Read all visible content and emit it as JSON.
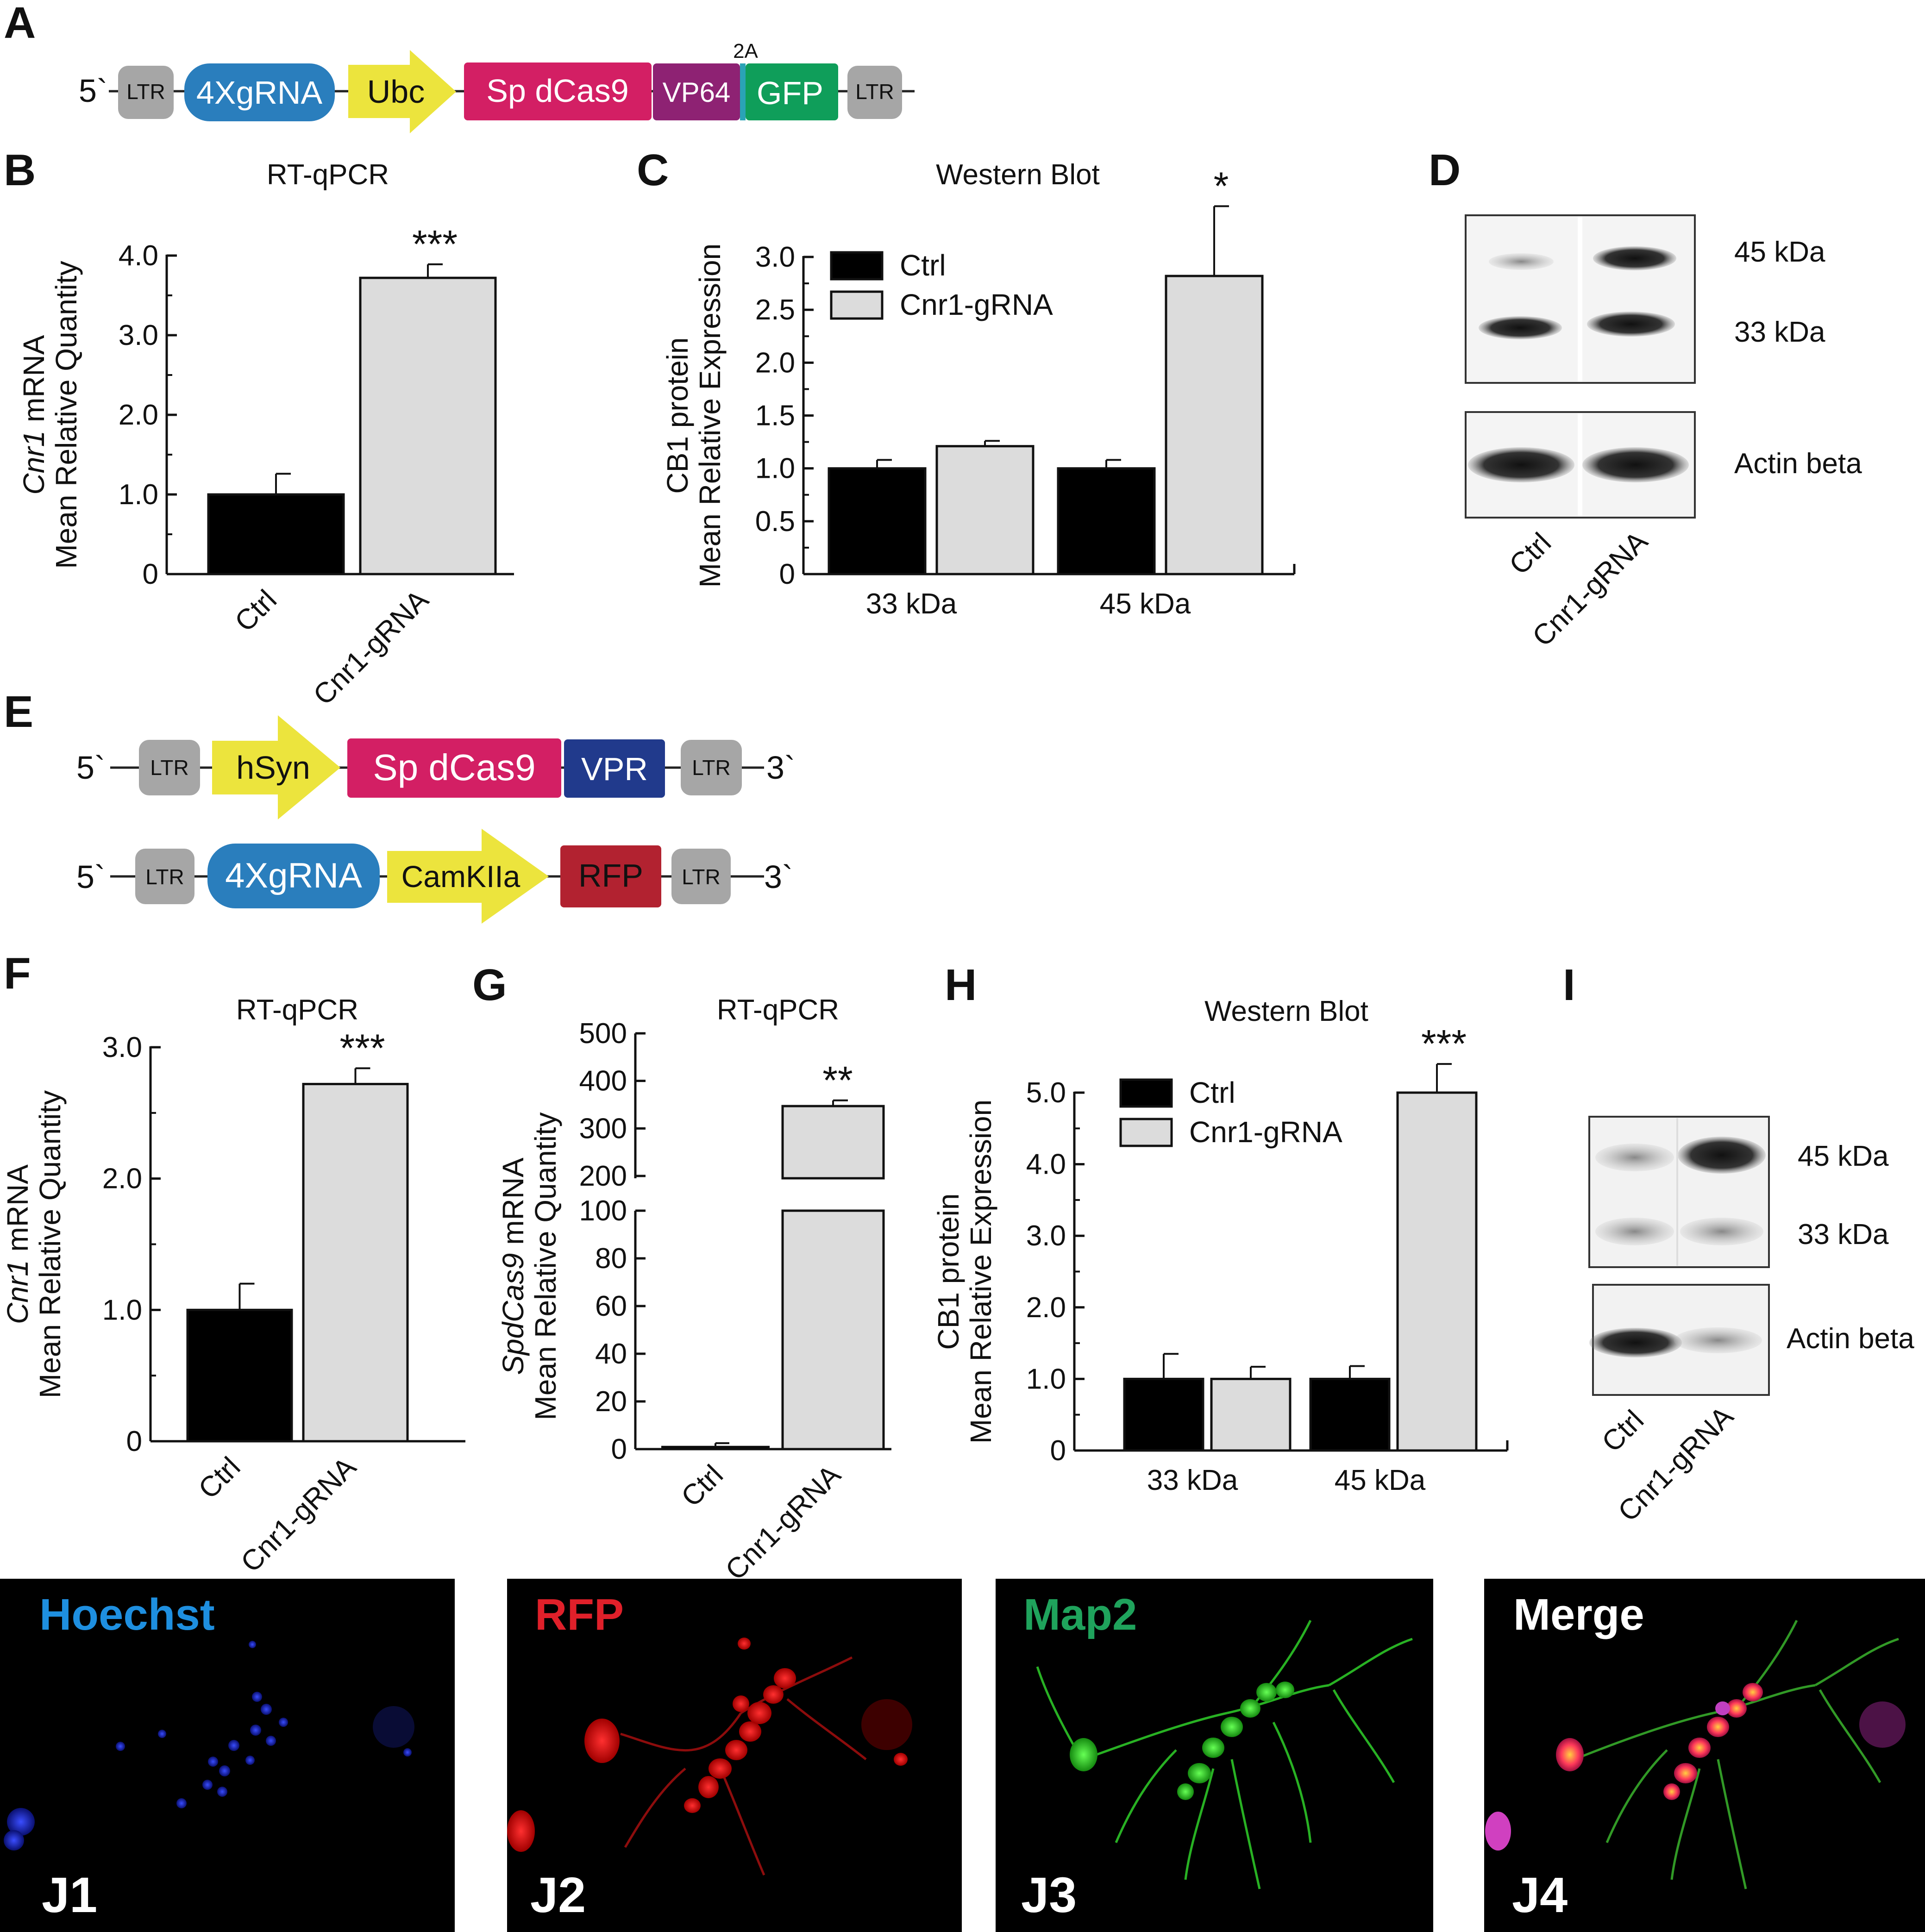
{
  "panels": {
    "A": "A",
    "B": "B",
    "C": "C",
    "D": "D",
    "E": "E",
    "F": "F",
    "G": "G",
    "H": "H",
    "I": "I"
  },
  "construct_A": {
    "five_prime": "5`",
    "blocks": [
      "LTR",
      "4XgRNA",
      "Ubc",
      "Sp dCas9",
      "VP64",
      "2A",
      "GFP",
      "LTR"
    ],
    "colors": {
      "ltr": "#a6a6a6",
      "grna": "#2a7ebd",
      "promoter": "#ece43d",
      "dcas9": "#d31f64",
      "vp64": "#8e2273",
      "gfp": "#0f9e5a",
      "a2": "#2aa3b6"
    }
  },
  "construct_E": {
    "line1": {
      "five_prime": "5`",
      "three_prime": "3`",
      "blocks": [
        "LTR",
        "hSyn",
        "Sp dCas9",
        "VPR",
        "LTR"
      ]
    },
    "line2": {
      "five_prime": "5`",
      "three_prime": "3`",
      "blocks": [
        "LTR",
        "4XgRNA",
        "CamKIIa",
        "RFP",
        "LTR"
      ]
    },
    "colors": {
      "vpr": "#213a8c",
      "rfp": "#b22230"
    }
  },
  "legend": {
    "ctrl": "Ctrl",
    "grna": "Cnr1-gRNA"
  },
  "series_colors": {
    "ctrl": "#000000",
    "grna": "#dcdcdc"
  },
  "chart_data": [
    {
      "panel": "B",
      "type": "bar",
      "title": "RT-qPCR",
      "ylabel_italic": "Cnr1",
      "ylabel_rest": " mRNA",
      "ylabel2": "Mean Relative Quantity",
      "categories": [
        "Ctrl",
        "Cnr1-gRNA"
      ],
      "values": [
        1.0,
        3.72
      ],
      "errors": [
        0.26,
        0.17
      ],
      "ylim": [
        0,
        4.0
      ],
      "yticks": [
        "0",
        "1.0",
        "2.0",
        "3.0",
        "4.0"
      ],
      "significance": {
        "Cnr1-gRNA": "***"
      }
    },
    {
      "panel": "C",
      "type": "bar",
      "title": "Western Blot",
      "ylabel": "CB1 protein",
      "ylabel2": "Mean Relative Expression",
      "categories": [
        "33 kDa",
        "45 kDa"
      ],
      "series": [
        {
          "name": "Ctrl",
          "values": [
            1.0,
            1.0
          ],
          "errors": [
            0.08,
            0.08
          ]
        },
        {
          "name": "Cnr1-gRNA",
          "values": [
            1.21,
            2.82
          ],
          "errors": [
            0.05,
            0.66
          ]
        }
      ],
      "ylim": [
        0,
        3.0
      ],
      "yticks": [
        "0",
        "0.5",
        "1.0",
        "1.5",
        "2.0",
        "2.5",
        "3.0"
      ],
      "significance": {
        "45 kDa": "*"
      }
    },
    {
      "panel": "F",
      "type": "bar",
      "title": "RT-qPCR",
      "ylabel_italic": "Cnr1",
      "ylabel_rest": " mRNA",
      "ylabel2": "Mean Relative Quantity",
      "categories": [
        "Ctrl",
        "Cnr1-gRNA"
      ],
      "values": [
        1.0,
        2.72
      ],
      "errors": [
        0.2,
        0.12
      ],
      "ylim": [
        0,
        3.0
      ],
      "yticks": [
        "0",
        "1.0",
        "2.0",
        "3.0"
      ],
      "significance": {
        "Cnr1-gRNA": "***"
      }
    },
    {
      "panel": "G",
      "type": "bar",
      "title": "RT-qPCR",
      "broken_axis": true,
      "ylabel_italic": "SpdCas9",
      "ylabel_rest": "  mRNA",
      "ylabel2": "Mean Relative Quantity",
      "categories": [
        "Ctrl",
        "Cnr1-gRNA"
      ],
      "values": [
        1.0,
        347
      ],
      "errors": [
        1.5,
        12
      ],
      "yticks_lower": [
        "0",
        "20",
        "40",
        "60",
        "80",
        "100"
      ],
      "yticks_upper": [
        "200",
        "300",
        "400",
        "500"
      ],
      "significance": {
        "Cnr1-gRNA": "**"
      }
    },
    {
      "panel": "H",
      "type": "bar",
      "title": "Western Blot",
      "ylabel": "CB1 protein",
      "ylabel2": "Mean Relative Expression",
      "categories": [
        "33 kDa",
        "45 kDa"
      ],
      "series": [
        {
          "name": "Ctrl",
          "values": [
            1.0,
            1.0
          ],
          "errors": [
            0.35,
            0.18
          ]
        },
        {
          "name": "Cnr1-gRNA",
          "values": [
            1.0,
            5.0
          ],
          "errors": [
            0.17,
            0.4
          ]
        }
      ],
      "ylim": [
        0,
        5.0
      ],
      "yticks": [
        "0",
        "1.0",
        "2.0",
        "3.0",
        "4.0",
        "5.0"
      ],
      "significance": {
        "45 kDa": "***"
      }
    }
  ],
  "blot_D": {
    "bands": [
      "45 kDa",
      "33 kDa",
      "Actin beta"
    ],
    "lanes": [
      "Ctrl",
      "Cnr1-gRNA"
    ]
  },
  "blot_I": {
    "bands": [
      "45 kDa",
      "33 kDa",
      "Actin beta"
    ],
    "lanes": [
      "Ctrl",
      "Cnr1-gRNA"
    ]
  },
  "micrographs": [
    {
      "label": "Hoechst",
      "id": "J1",
      "color": "#1e8fe0"
    },
    {
      "label": "RFP",
      "id": "J2",
      "color": "#e0202a"
    },
    {
      "label": "Map2",
      "id": "J3",
      "color": "#1fa35c"
    },
    {
      "label": "Merge",
      "id": "J4",
      "color": "#ffffff"
    }
  ]
}
